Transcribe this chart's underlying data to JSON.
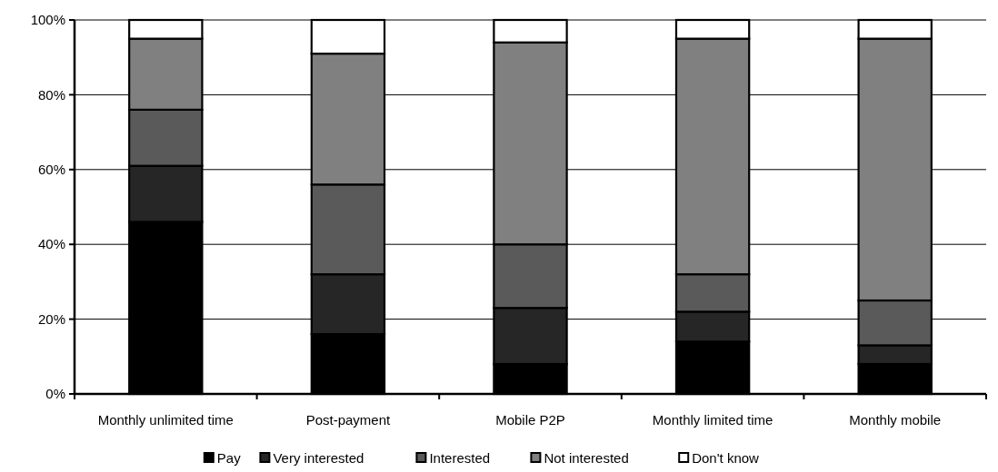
{
  "chart_data": {
    "type": "bar",
    "stacked": true,
    "categories": [
      "Monthly unlimited time",
      "Post-payment",
      "Mobile P2P",
      "Monthly limited time",
      "Monthly mobile"
    ],
    "series": [
      {
        "name": "Pay",
        "color": "#000000",
        "values": [
          46,
          16,
          8,
          14,
          8
        ]
      },
      {
        "name": "Very interested",
        "color": "#262626",
        "values": [
          15,
          16,
          15,
          8,
          5
        ]
      },
      {
        "name": "Interested",
        "color": "#5a5a5a",
        "values": [
          15,
          24,
          17,
          10,
          12
        ]
      },
      {
        "name": "Not interested",
        "color": "#808080",
        "values": [
          19,
          35,
          54,
          63,
          70
        ]
      },
      {
        "name": "Don't know",
        "color": "#ffffff",
        "values": [
          5,
          9,
          6,
          5,
          5
        ]
      }
    ],
    "ylim": [
      0,
      100
    ],
    "yticks": [
      {
        "value": 0,
        "label": "0%"
      },
      {
        "value": 20,
        "label": "20%"
      },
      {
        "value": 40,
        "label": "40%"
      },
      {
        "value": 60,
        "label": "60%"
      },
      {
        "value": 80,
        "label": "80%"
      },
      {
        "value": 100,
        "label": "100%"
      }
    ],
    "grid": "y",
    "legend": "bottom"
  }
}
